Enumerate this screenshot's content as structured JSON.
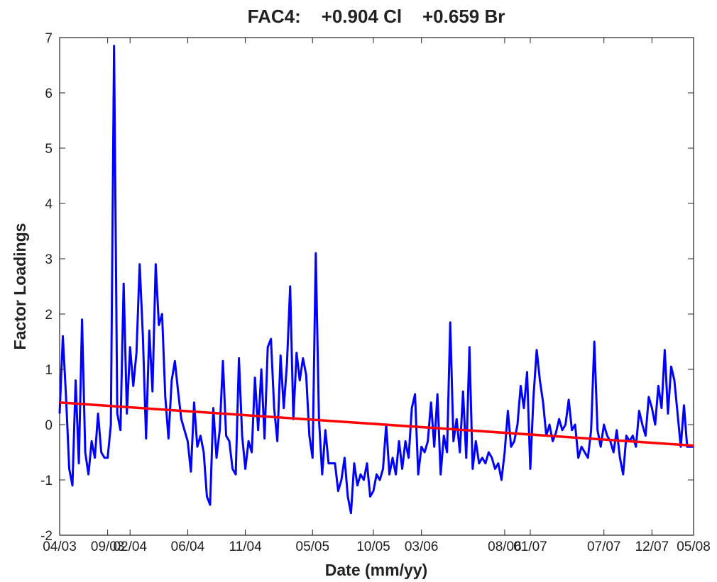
{
  "chart_data": {
    "type": "line",
    "title": "FAC4:    +0.904 Cl    +0.659 Br",
    "x_label": "Date (mm/yy)",
    "y_label": "Factor Loadings",
    "categories": [
      "04/03",
      null,
      null,
      null,
      null,
      null,
      null,
      null,
      null,
      null,
      null,
      null,
      null,
      null,
      null,
      "09/03",
      null,
      null,
      null,
      null,
      null,
      null,
      "02/04",
      null,
      null,
      null,
      null,
      null,
      null,
      null,
      null,
      null,
      null,
      null,
      null,
      null,
      null,
      null,
      null,
      null,
      "06/04",
      null,
      null,
      null,
      null,
      null,
      null,
      null,
      null,
      null,
      null,
      null,
      null,
      null,
      null,
      null,
      null,
      null,
      "11/04",
      null,
      null,
      null,
      null,
      null,
      null,
      null,
      null,
      null,
      null,
      null,
      null,
      null,
      null,
      null,
      null,
      null,
      null,
      null,
      null,
      "05/05",
      null,
      null,
      null,
      null,
      null,
      null,
      null,
      null,
      null,
      null,
      null,
      null,
      null,
      null,
      null,
      null,
      null,
      null,
      "10/05",
      null,
      null,
      null,
      null,
      null,
      null,
      null,
      null,
      null,
      null,
      null,
      null,
      null,
      null,
      "03/06",
      null,
      null,
      null,
      null,
      null,
      null,
      null,
      null,
      null,
      null,
      null,
      null,
      null,
      null,
      null,
      null,
      null,
      null,
      null,
      null,
      null,
      null,
      null,
      null,
      null,
      "08/06",
      null,
      null,
      null,
      null,
      null,
      null,
      null,
      "01/07",
      null,
      null,
      null,
      null,
      null,
      null,
      null,
      null,
      null,
      null,
      null,
      null,
      null,
      null,
      null,
      null,
      null,
      null,
      null,
      null,
      null,
      null,
      "07/07",
      null,
      null,
      null,
      null,
      null,
      null,
      null,
      null,
      null,
      null,
      null,
      null,
      null,
      null,
      "12/07",
      null,
      null,
      null,
      null,
      null,
      null,
      null,
      null,
      null,
      null,
      null,
      null,
      "05/08"
    ],
    "color": "#0000ff",
    "values": [
      0.2,
      1.6,
      0.5,
      -0.8,
      -1.1,
      0.8,
      -0.7,
      1.9,
      -0.5,
      -0.9,
      -0.3,
      -0.6,
      0.2,
      -0.5,
      -0.6,
      -0.6,
      0,
      6.85,
      0.2,
      -0.1,
      2.55,
      0.2,
      1.4,
      0.7,
      1.3,
      2.9,
      1.6,
      -0.25,
      1.7,
      0.6,
      2.9,
      1.8,
      2.0,
      0.5,
      -0.25,
      0.8,
      1.15,
      0.6,
      0.1,
      -0.1,
      -0.3,
      -0.85,
      0.4,
      -0.4,
      -0.2,
      -0.5,
      -1.3,
      -1.45,
      0.3,
      -0.6,
      -0.1,
      1.15,
      -0.2,
      -0.3,
      -0.8,
      -0.9,
      1.2,
      -0.2,
      -0.8,
      -0.3,
      -0.5,
      0.85,
      -0.1,
      1.0,
      -0.25,
      1.4,
      1.55,
      0.3,
      -0.3,
      1.25,
      0.3,
      1.1,
      2.5,
      0.1,
      1.3,
      0.8,
      1.2,
      0.9,
      -0.2,
      -0.6,
      3.1,
      0.1,
      -0.9,
      -0.1,
      -0.7,
      -0.7,
      -0.7,
      -1.2,
      -1.0,
      -0.6,
      -1.3,
      -1.6,
      -0.7,
      -1.1,
      -0.9,
      -1.0,
      -0.7,
      -1.3,
      -1.2,
      -0.9,
      -1.0,
      -0.8,
      0.0,
      -0.9,
      -0.6,
      -0.9,
      -0.3,
      -0.8,
      -0.3,
      -0.6,
      0.3,
      0.55,
      -0.9,
      -0.4,
      -0.5,
      -0.3,
      0.4,
      -0.4,
      0.55,
      -0.9,
      -0.2,
      -0.5,
      1.85,
      -0.3,
      0.1,
      -0.5,
      0.6,
      -0.6,
      1.4,
      -0.8,
      -0.3,
      -0.7,
      -0.6,
      -0.7,
      -0.5,
      -0.6,
      -0.8,
      -0.7,
      -1.0,
      -0.5,
      0.25,
      -0.4,
      -0.3,
      0.0,
      0.7,
      0.3,
      0.95,
      -0.8,
      0.5,
      1.35,
      0.8,
      0.4,
      -0.2,
      0.0,
      -0.3,
      -0.15,
      0.1,
      -0.1,
      0.0,
      0.45,
      -0.1,
      0.0,
      -0.6,
      -0.4,
      -0.5,
      -0.6,
      -0.1,
      1.5,
      -0.1,
      -0.4,
      0.0,
      -0.2,
      -0.3,
      -0.5,
      -0.1,
      -0.6,
      -0.9,
      -0.2,
      -0.3,
      -0.2,
      -0.4,
      0.25,
      0.0,
      -0.2,
      0.5,
      0.3,
      0.0,
      0.7,
      0.3,
      1.35,
      0.2,
      1.05,
      0.8,
      0.2,
      -0.4,
      0.35,
      -0.4,
      -0.4,
      -0.4
    ],
    "trendline": {
      "color": "#ff0000",
      "start": 0.4,
      "end": -0.38
    },
    "ylim": [
      -2,
      7
    ],
    "yticks": [
      -2,
      -1,
      0,
      1,
      2,
      3,
      4,
      5,
      6,
      7
    ]
  }
}
